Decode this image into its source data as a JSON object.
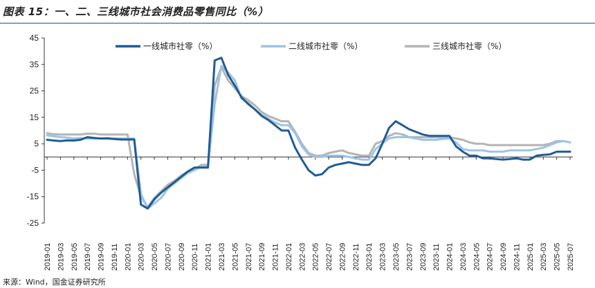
{
  "title": "图表 15：一、二、三线城市社会消费品零售同比（%）",
  "source": "来源：Wind，国金证券研究所",
  "chart_data": {
    "type": "line",
    "ylim": [
      -25,
      45
    ],
    "yticks": [
      45,
      35,
      25,
      15,
      5,
      -5,
      -15,
      -25
    ],
    "legend_position": "top",
    "x": [
      "2019-01",
      "2019-02",
      "2019-03",
      "2019-04",
      "2019-05",
      "2019-06",
      "2019-07",
      "2019-08",
      "2019-09",
      "2019-10",
      "2019-11",
      "2019-12",
      "2020-01",
      "2020-02",
      "2020-03",
      "2020-04",
      "2020-05",
      "2020-06",
      "2020-07",
      "2020-08",
      "2020-09",
      "2020-10",
      "2020-11",
      "2020-12",
      "2021-01",
      "2021-02",
      "2021-03",
      "2021-04",
      "2021-05",
      "2021-06",
      "2021-07",
      "2021-08",
      "2021-09",
      "2021-10",
      "2021-11",
      "2021-12",
      "2022-01",
      "2022-02",
      "2022-03",
      "2022-04",
      "2022-05",
      "2022-06",
      "2022-07",
      "2022-08",
      "2022-09",
      "2022-10",
      "2022-11",
      "2022-12",
      "2023-01",
      "2023-02",
      "2023-03",
      "2023-04",
      "2023-05",
      "2023-06",
      "2023-07",
      "2023-08",
      "2023-09",
      "2023-10",
      "2023-11",
      "2023-12",
      "2024-01",
      "2024-02",
      "2024-03",
      "2024-04",
      "2024-05",
      "2024-06",
      "2024-07",
      "2024-08",
      "2024-09",
      "2024-10",
      "2024-11",
      "2024-12",
      "2025-01",
      "2025-02",
      "2025-03",
      "2025-04",
      "2025-05",
      "2025-06",
      "2025-07"
    ],
    "xtick_labels": [
      "2019-01",
      "2019-03",
      "2019-05",
      "2019-07",
      "2019-09",
      "2019-11",
      "2020-01",
      "2020-03",
      "2020-05",
      "2020-07",
      "2020-09",
      "2020-11",
      "2021-01",
      "2021-03",
      "2021-05",
      "2021-07",
      "2021-09",
      "2021-11",
      "2022-01",
      "2022-03",
      "2022-05",
      "2022-07",
      "2022-09",
      "2022-11",
      "2023-01",
      "2023-03",
      "2023-05",
      "2023-07",
      "2023-09",
      "2023-11",
      "2024-01",
      "2024-03",
      "2024-05",
      "2024-07",
      "2024-09",
      "2024-11",
      "2025-01",
      "2025-03",
      "2025-05",
      "2025-07"
    ],
    "series": [
      {
        "name": "一线城市社零（%）",
        "color": "#1f5b96",
        "values": [
          6.5,
          6.2,
          6.0,
          6.3,
          6.2,
          6.5,
          7.5,
          7.2,
          7.0,
          7.0,
          6.8,
          6.6,
          6.6,
          6.6,
          -18.0,
          -19.5,
          -16.0,
          -13.5,
          -11.5,
          -9.5,
          -7.5,
          -5.5,
          -4.0,
          -4.0,
          -4.0,
          36.5,
          37.5,
          31.0,
          27.0,
          22.5,
          20.0,
          18.0,
          15.5,
          14.0,
          12.0,
          10.0,
          10.0,
          3.5,
          -1.0,
          -5.0,
          -7.0,
          -6.5,
          -4.0,
          -3.0,
          -2.5,
          -2.0,
          -2.5,
          -3.0,
          -3.0,
          -0.5,
          5.0,
          11.0,
          13.5,
          12.0,
          10.5,
          9.5,
          8.5,
          8.0,
          8.0,
          8.0,
          8.0,
          4.0,
          2.0,
          0.5,
          0.5,
          -0.5,
          -0.5,
          -0.8,
          -1.0,
          -0.8,
          -0.5,
          -1.0,
          -1.0,
          0.5,
          0.8,
          1.0,
          2.0,
          2.0,
          2.0
        ]
      },
      {
        "name": "二线城市社零（%）",
        "color": "#9dc3e6",
        "values": [
          8.2,
          7.8,
          7.5,
          7.3,
          7.0,
          7.2,
          7.0,
          7.0,
          7.0,
          7.2,
          7.0,
          7.0,
          7.0,
          7.0,
          -14.0,
          -19.5,
          -17.5,
          -15.5,
          -12.0,
          -10.0,
          -8.0,
          -6.0,
          -5.0,
          -3.5,
          -3.5,
          20.0,
          34.5,
          32.0,
          29.0,
          22.0,
          20.5,
          18.0,
          16.0,
          14.5,
          13.0,
          12.0,
          12.0,
          9.0,
          4.0,
          1.0,
          0.0,
          0.0,
          0.5,
          0.5,
          0.5,
          0.0,
          -0.5,
          -1.0,
          -1.0,
          3.0,
          5.0,
          7.0,
          7.5,
          7.5,
          7.5,
          7.0,
          6.5,
          6.5,
          6.5,
          6.8,
          7.0,
          5.5,
          3.0,
          2.5,
          2.5,
          2.5,
          2.0,
          2.0,
          2.0,
          2.5,
          2.5,
          2.5,
          2.5,
          3.0,
          3.5,
          4.5,
          5.5,
          6.0,
          5.5
        ]
      },
      {
        "name": "三线城市社零（%）",
        "color": "#b4b4b4",
        "values": [
          9.0,
          8.6,
          8.5,
          8.5,
          8.5,
          8.5,
          8.8,
          8.8,
          8.5,
          8.5,
          8.5,
          8.5,
          8.5,
          -6.5,
          -15.0,
          -19.0,
          -15.5,
          -13.0,
          -10.5,
          -9.0,
          -7.0,
          -5.5,
          -4.5,
          -3.0,
          -3.0,
          27.0,
          34.0,
          29.0,
          26.0,
          23.0,
          21.5,
          19.5,
          17.0,
          15.5,
          14.5,
          13.5,
          13.5,
          9.5,
          5.0,
          1.5,
          0.5,
          0.5,
          1.5,
          2.0,
          2.5,
          1.5,
          1.0,
          0.5,
          0.5,
          5.0,
          6.0,
          8.0,
          9.0,
          8.5,
          7.5,
          7.5,
          7.5,
          7.5,
          7.5,
          7.5,
          7.5,
          7.0,
          6.5,
          5.5,
          5.0,
          5.0,
          4.5,
          4.5,
          4.5,
          4.5,
          4.5,
          4.5,
          4.5,
          4.5,
          4.5,
          5.0,
          6.0,
          6.0,
          5.5
        ]
      }
    ]
  }
}
